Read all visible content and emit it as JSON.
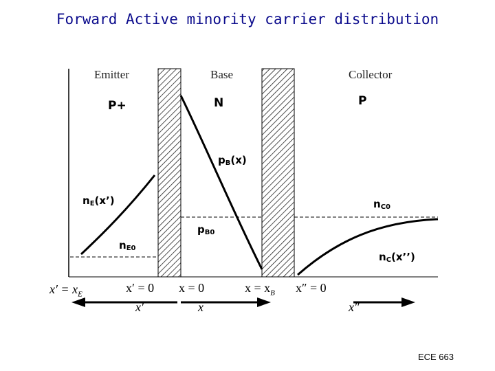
{
  "title": "Forward Active minority carrier distribution",
  "regions": {
    "emitter": "Emitter",
    "base": "Base",
    "collector": "Collector"
  },
  "doping": {
    "emitter": "P+",
    "base": "N",
    "collector": "P"
  },
  "labels": {
    "pB_main": "p",
    "pB_sub": "B",
    "pB_tail": "(x)",
    "nE_main": "n",
    "nE_sub": "E",
    "nE_tail": "(x’)",
    "nC0_main": "n",
    "nC0_sub": "C0",
    "pB0_main": "p",
    "pB0_sub": "B0",
    "nE0_main": "n",
    "nE0_sub": "E0",
    "nC_main": "n",
    "nC_sub": "C",
    "nC_tail": "(x’’)"
  },
  "coords": {
    "xE": "x′ = x",
    "xE_sub": "E",
    "xp0": "x′ = 0",
    "x0": "x = 0",
    "xB": "x = x",
    "xB_sub": "B",
    "xpp0": "x″ = 0"
  },
  "axes": {
    "emitter": "x′",
    "base": "x",
    "collector": "x″"
  },
  "footer": "ECE 663"
}
